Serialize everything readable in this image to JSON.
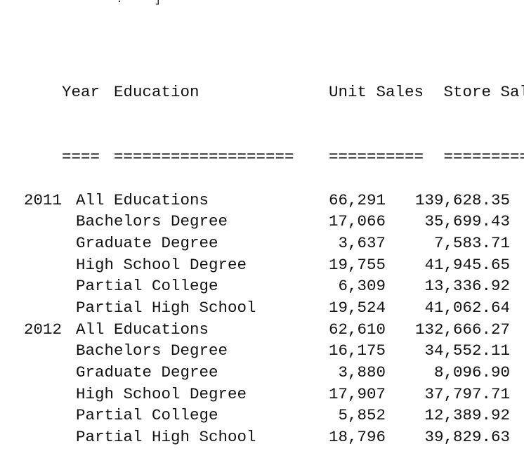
{
  "clipped_top_text": "' : ' ]",
  "header": {
    "year": "Year",
    "education": "Education",
    "unit_sales": "Unit Sales",
    "store_sales": "Store Sales"
  },
  "separator": {
    "year": "====",
    "education": "===================",
    "unit_sales": "==========",
    "store_sales": "==========="
  },
  "rows": [
    {
      "year": "2011",
      "education": "All Educations",
      "unit_sales": "66,291",
      "store_sales": "139,628.35"
    },
    {
      "year": "",
      "education": "Bachelors Degree",
      "unit_sales": "17,066",
      "store_sales": "35,699.43"
    },
    {
      "year": "",
      "education": "Graduate Degree",
      "unit_sales": "3,637",
      "store_sales": "7,583.71"
    },
    {
      "year": "",
      "education": "High School Degree",
      "unit_sales": "19,755",
      "store_sales": "41,945.65"
    },
    {
      "year": "",
      "education": "Partial College",
      "unit_sales": "6,309",
      "store_sales": "13,336.92"
    },
    {
      "year": "",
      "education": "Partial High School",
      "unit_sales": "19,524",
      "store_sales": "41,062.64"
    },
    {
      "year": "2012",
      "education": "All Educations",
      "unit_sales": "62,610",
      "store_sales": "132,666.27"
    },
    {
      "year": "",
      "education": "Bachelors Degree",
      "unit_sales": "16,175",
      "store_sales": "34,552.11"
    },
    {
      "year": "",
      "education": "Graduate Degree",
      "unit_sales": "3,880",
      "store_sales": "8,096.90"
    },
    {
      "year": "",
      "education": "High School Degree",
      "unit_sales": "17,907",
      "store_sales": "37,797.71"
    },
    {
      "year": "",
      "education": "Partial College",
      "unit_sales": "5,852",
      "store_sales": "12,389.92"
    },
    {
      "year": "",
      "education": "Partial High School",
      "unit_sales": "18,796",
      "store_sales": "39,829.63"
    }
  ]
}
